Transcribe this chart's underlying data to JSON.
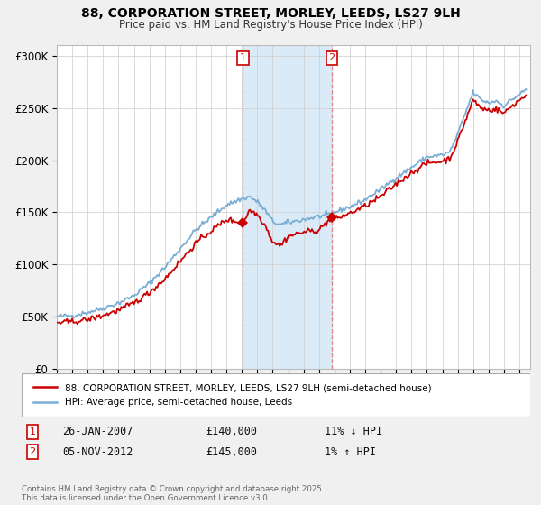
{
  "title": "88, CORPORATION STREET, MORLEY, LEEDS, LS27 9LH",
  "subtitle": "Price paid vs. HM Land Registry's House Price Index (HPI)",
  "ylabel_ticks": [
    "£0",
    "£50K",
    "£100K",
    "£150K",
    "£200K",
    "£250K",
    "£300K"
  ],
  "ytick_values": [
    0,
    50000,
    100000,
    150000,
    200000,
    250000,
    300000
  ],
  "ylim": [
    0,
    310000
  ],
  "xlim_start": 1995.0,
  "xlim_end": 2025.7,
  "sale1_x": 2007.07,
  "sale1_y": 140000,
  "sale1_label": "1",
  "sale2_x": 2012.84,
  "sale2_y": 145000,
  "sale2_label": "2",
  "sale_color": "#cc0000",
  "hpi_color": "#7aadd4",
  "highlight_color": "#daeaf7",
  "vline_color": "#dd8888",
  "annotation1_date": "26-JAN-2007",
  "annotation1_price": "£140,000",
  "annotation1_hpi": "11% ↓ HPI",
  "annotation2_date": "05-NOV-2012",
  "annotation2_price": "£145,000",
  "annotation2_hpi": "1% ↑ HPI",
  "legend_label1": "88, CORPORATION STREET, MORLEY, LEEDS, LS27 9LH (semi-detached house)",
  "legend_label2": "HPI: Average price, semi-detached house, Leeds",
  "footnote": "Contains HM Land Registry data © Crown copyright and database right 2025.\nThis data is licensed under the Open Government Licence v3.0.",
  "background_color": "#f0f0f0",
  "plot_background": "#ffffff",
  "grid_color": "#cccccc"
}
